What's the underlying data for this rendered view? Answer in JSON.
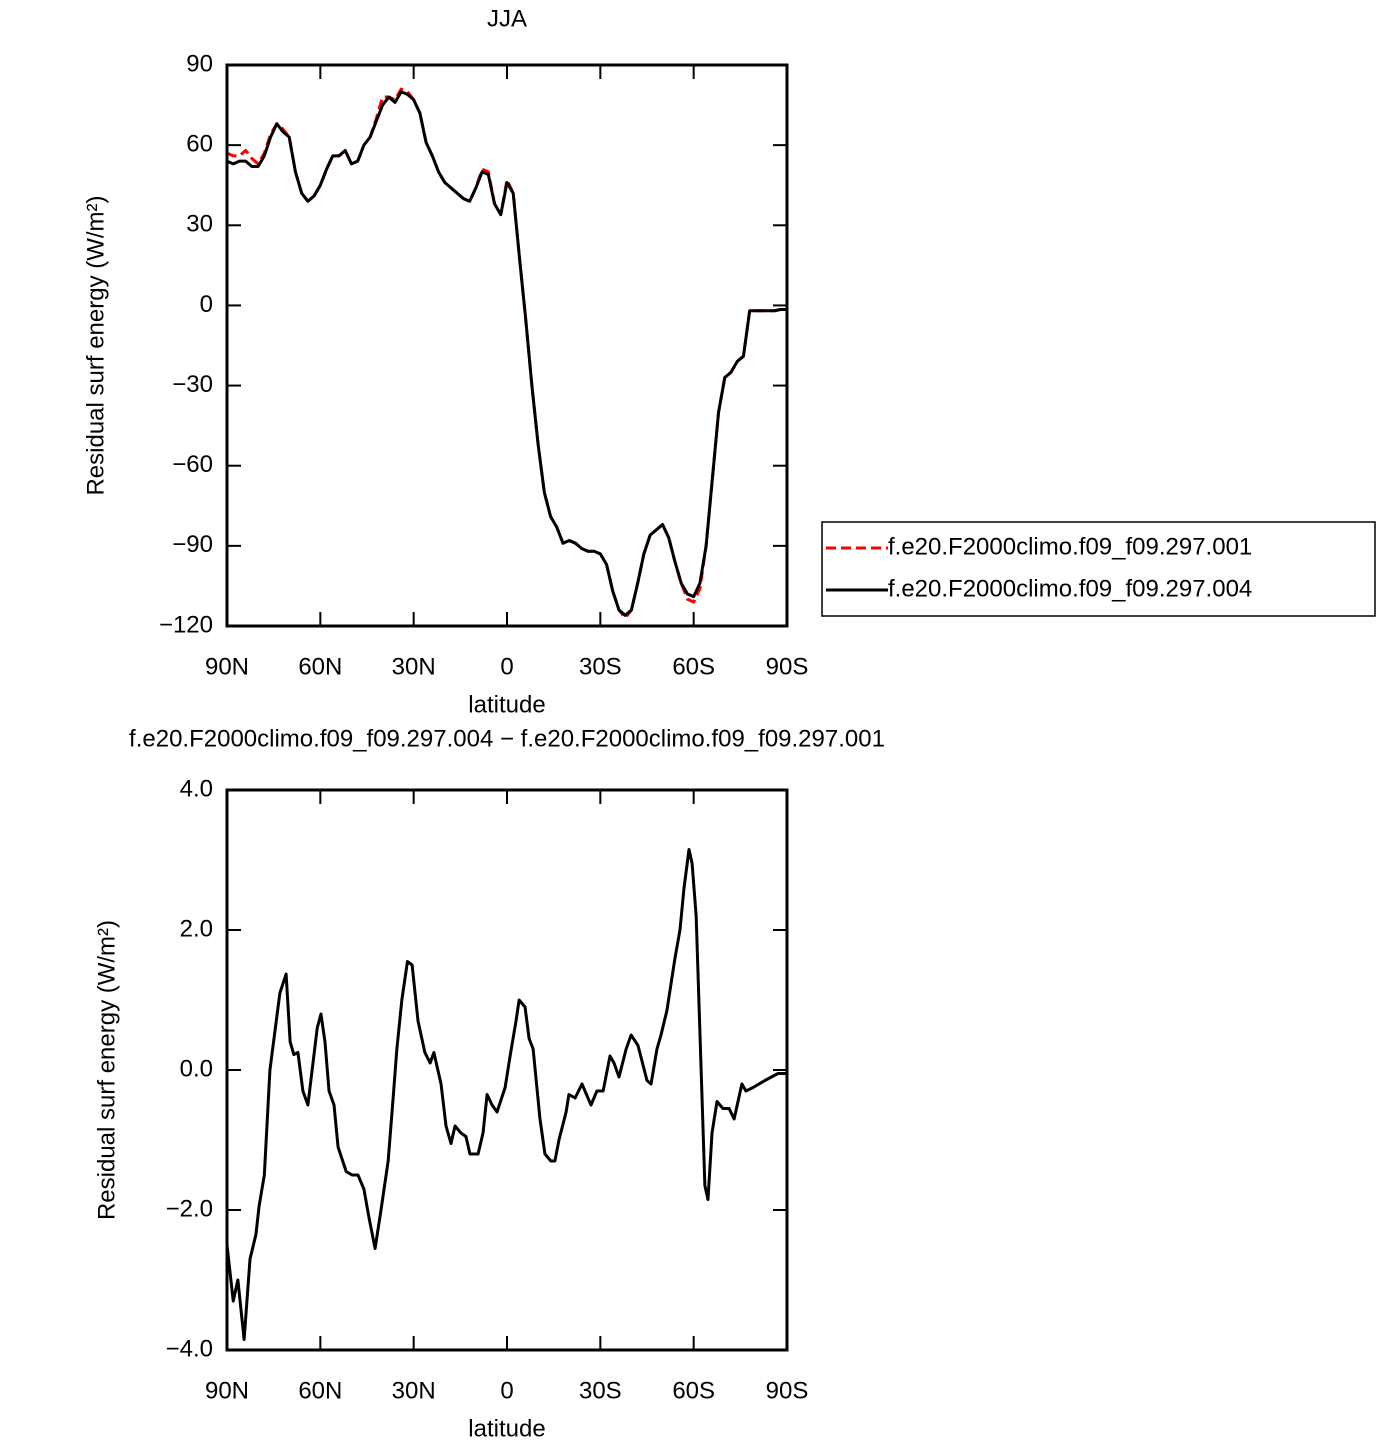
{
  "chart_data": [
    {
      "type": "line",
      "title": "JJA",
      "x_label": "latitude",
      "y_label": "Residual surf energy (W/m²)",
      "xlim": [
        90,
        -90
      ],
      "ylim": [
        -120,
        90
      ],
      "xticks": [
        {
          "value": 90,
          "label": "90N"
        },
        {
          "value": 60,
          "label": "60N"
        },
        {
          "value": 30,
          "label": "30N"
        },
        0,
        {
          "value": -30,
          "label": "30S"
        },
        {
          "value": -60,
          "label": "60S"
        },
        {
          "value": -90,
          "label": "90S"
        }
      ],
      "yticks": [
        90,
        60,
        30,
        0,
        {
          "value": -30,
          "label": "−30"
        },
        {
          "value": -60,
          "label": "−60"
        },
        {
          "value": -90,
          "label": "−90"
        },
        {
          "value": -120,
          "label": "−120"
        }
      ],
      "legend": "right",
      "x": [
        90,
        88,
        86,
        84,
        82,
        80,
        78,
        76,
        74,
        72,
        70,
        68,
        66,
        64,
        62,
        60,
        58,
        56,
        54,
        52,
        50,
        48,
        46,
        44,
        42,
        40,
        38,
        36,
        34,
        32,
        30,
        28,
        26,
        24,
        22,
        20,
        18,
        16,
        14,
        12,
        10,
        8,
        6,
        4,
        2,
        0,
        -2,
        -4,
        -6,
        -8,
        -10,
        -12,
        -14,
        -16,
        -18,
        -20,
        -22,
        -24,
        -26,
        -28,
        -30,
        -32,
        -34,
        -36,
        -38,
        -40,
        -42,
        -44,
        -46,
        -48,
        -50,
        -52,
        -54,
        -56,
        -58,
        -60,
        -62,
        -64,
        -66,
        -68,
        -70,
        -72,
        -74,
        -76,
        -78,
        -80,
        -82,
        -84,
        -86,
        -88,
        -90
      ],
      "series": [
        {
          "name": "f.e20.F2000climo.f09_f09.297.001",
          "color": "#ff0000",
          "line_style": "dashed",
          "values": [
            57,
            56,
            56,
            58,
            55,
            53,
            57,
            64,
            68,
            66,
            63,
            50,
            42,
            39,
            41,
            45,
            51,
            56,
            56,
            58,
            53,
            54,
            60,
            63,
            70,
            78,
            78,
            77,
            81,
            80,
            77,
            72,
            61,
            56,
            50,
            46,
            44,
            42,
            40,
            39,
            44,
            51,
            50,
            38,
            34,
            47,
            42,
            18,
            -5,
            -30,
            -52,
            -70,
            -79,
            -83,
            -89,
            -88,
            -89,
            -91,
            -92,
            -92,
            -93,
            -97,
            -107,
            -114,
            -117,
            -114,
            -104,
            -93,
            -86,
            -84,
            -82,
            -87,
            -96,
            -104,
            -110,
            -111,
            -106,
            -90,
            -65,
            -40,
            -27,
            -25,
            -21,
            -19,
            -2,
            -2,
            -2,
            -2,
            -2,
            -1.5,
            -1.5
          ]
        },
        {
          "name": "f.e20.F2000climo.f09_f09.297.004",
          "color": "#000000",
          "line_style": "solid",
          "values": [
            54,
            53,
            54,
            54,
            52,
            52,
            56,
            63,
            68,
            65,
            63,
            50,
            42,
            39,
            41,
            45,
            51,
            56,
            56,
            58,
            53,
            54,
            60,
            63,
            69,
            75,
            78,
            76,
            80,
            79,
            77,
            72,
            61,
            56,
            50,
            46,
            44,
            42,
            40,
            39,
            44,
            50,
            49,
            38,
            34,
            46,
            42,
            18,
            -5,
            -30,
            -52,
            -70,
            -79,
            -83,
            -89,
            -88,
            -89,
            -91,
            -92,
            -92,
            -93,
            -97,
            -107,
            -114,
            -116,
            -114,
            -104,
            -93,
            -86,
            -84,
            -82,
            -87,
            -96,
            -104,
            -108,
            -109,
            -104,
            -90,
            -65,
            -40,
            -27,
            -25,
            -21,
            -19,
            -2,
            -2,
            -2,
            -2,
            -2,
            -1.5,
            -1.5
          ]
        }
      ]
    },
    {
      "type": "line",
      "title": "f.e20.F2000climo.f09_f09.297.004 − f.e20.F2000climo.f09_f09.297.001",
      "x_label": "latitude",
      "y_label": "Residual surf energy (W/m²)",
      "xlim": [
        90,
        -90
      ],
      "ylim": [
        -4,
        4
      ],
      "xticks": [
        {
          "value": 90,
          "label": "90N"
        },
        {
          "value": 60,
          "label": "60N"
        },
        {
          "value": 30,
          "label": "30N"
        },
        0,
        {
          "value": -30,
          "label": "30S"
        },
        {
          "value": -60,
          "label": "60S"
        },
        {
          "value": -90,
          "label": "90S"
        }
      ],
      "yticks": [
        {
          "value": 4,
          "label": "4.0"
        },
        {
          "value": 2,
          "label": "2.0"
        },
        {
          "value": 0,
          "label": "0.0"
        },
        {
          "value": -2,
          "label": "−2.0"
        },
        {
          "value": -4,
          "label": "−4.0"
        }
      ],
      "x": [
        90,
        88,
        86.5,
        84.5,
        82.6,
        80.7,
        79.7,
        78,
        76.2,
        73,
        71,
        69.7,
        68.5,
        67.2,
        65.6,
        64,
        61,
        59.8,
        58.5,
        57.2,
        55.6,
        54.3,
        51.7,
        49.8,
        47.9,
        46,
        44.4,
        42.4,
        40.5,
        38.2,
        36.6,
        35.4,
        33.8,
        32,
        30.5,
        28.6,
        26.4,
        24.7,
        23.5,
        21.2,
        19.6,
        18,
        16.7,
        14.8,
        13.2,
        11.9,
        9.3,
        7.7,
        6.4,
        4.8,
        3.2,
        0.6,
        -1,
        -2.9,
        -3.9,
        -5.8,
        -7.1,
        -8.4,
        -10.6,
        -12.2,
        -14.1,
        -15.4,
        -16.7,
        -19,
        -19.9,
        -21.9,
        -24.1,
        -27,
        -28.9,
        -30.9,
        -33.1,
        -34.4,
        -36,
        -38.3,
        -39.9,
        -42.1,
        -45,
        -46.3,
        -48.2,
        -49.5,
        -51.4,
        -54,
        -55.6,
        -56.9,
        -58.5,
        -59.5,
        -60.8,
        -63.6,
        -64.6,
        -65.9,
        -67.5,
        -69.4,
        -71.4,
        -73,
        -75.5,
        -76.8,
        -79.1,
        -82.9,
        -87.1,
        -90
      ],
      "series": [
        {
          "color": "#000000",
          "line_style": "solid",
          "values": [
            -2.5,
            -3.3,
            -3.0,
            -3.85,
            -2.7,
            -2.35,
            -1.95,
            -1.5,
            0.0,
            1.1,
            1.37,
            0.4,
            0.22,
            0.25,
            -0.3,
            -0.5,
            0.6,
            0.8,
            0.4,
            -0.3,
            -0.5,
            -1.1,
            -1.45,
            -1.5,
            -1.5,
            -1.7,
            -2.1,
            -2.55,
            -2.0,
            -1.3,
            -0.4,
            0.3,
            1.0,
            1.55,
            1.5,
            0.7,
            0.25,
            0.1,
            0.25,
            -0.2,
            -0.8,
            -1.05,
            -0.8,
            -0.9,
            -0.95,
            -1.2,
            -1.2,
            -0.9,
            -0.35,
            -0.5,
            -0.6,
            -0.25,
            0.2,
            0.7,
            1.0,
            0.9,
            0.45,
            0.3,
            -0.7,
            -1.2,
            -1.3,
            -1.3,
            -1.0,
            -0.6,
            -0.35,
            -0.4,
            -0.2,
            -0.5,
            -0.3,
            -0.3,
            0.2,
            0.1,
            -0.1,
            0.3,
            0.5,
            0.35,
            -0.15,
            -0.2,
            0.3,
            0.5,
            0.85,
            1.6,
            2.0,
            2.6,
            3.15,
            2.95,
            2.2,
            -1.65,
            -1.85,
            -0.9,
            -0.45,
            -0.55,
            -0.55,
            -0.7,
            -0.2,
            -0.3,
            -0.25,
            -0.15,
            -0.05,
            -0.05
          ]
        }
      ]
    }
  ]
}
